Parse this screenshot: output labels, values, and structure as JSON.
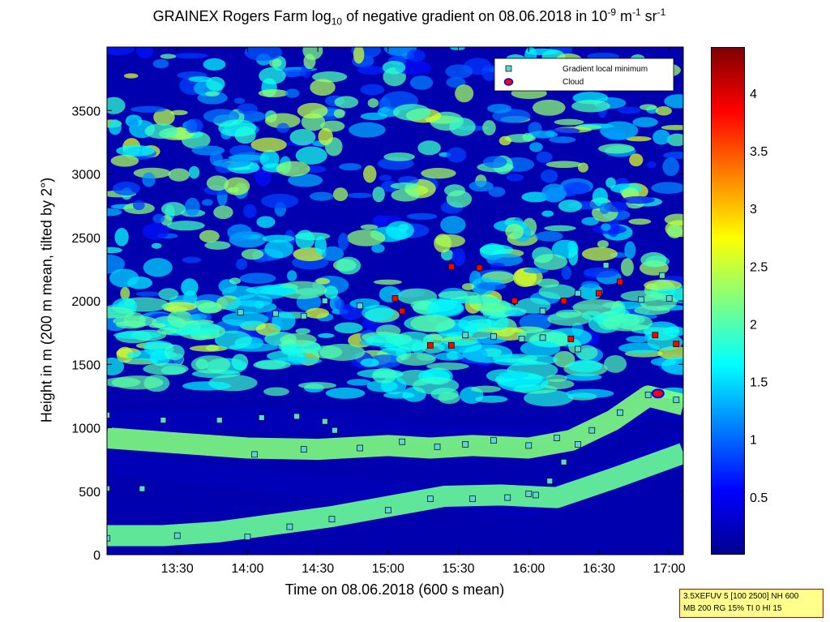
{
  "title": {
    "part1": "GRAINEX Rogers Farm log",
    "sub": "10",
    "part2": " of negative gradient on 08.06.2018 in 10",
    "sup1": "-9",
    "part3": " m",
    "sup2": "-1",
    "part4": " sr",
    "sup3": "-1"
  },
  "annotation": {
    "line1": "3.5XEFUV 5 [100 2500] NH 600",
    "line2": "MB 200 RG 15% TI 0 HI 15"
  },
  "colors": {
    "colormap": [
      "#00008f",
      "#0000ff",
      "#0080ff",
      "#00ffff",
      "#80ff80",
      "#ffff00",
      "#ff8000",
      "#ff0000",
      "#800000"
    ],
    "marker_fill_cool": "#5bd6d6",
    "marker_fill_warm": "#ff0000",
    "cloud": "#ff0000"
  },
  "chart_data": {
    "type": "heatmap",
    "xlabel": "Time on 08.06.2018 (600 s mean)",
    "ylabel": "Height in m (200 m mean, tilted by 2°)",
    "xlim": [
      13.0,
      17.1
    ],
    "ylim": [
      0,
      4000
    ],
    "xticks": [
      "13:30",
      "14:00",
      "14:30",
      "15:00",
      "15:30",
      "16:00",
      "16:30",
      "17:00"
    ],
    "xtick_values": [
      13.5,
      14.0,
      14.5,
      15.0,
      15.5,
      16.0,
      16.5,
      17.0
    ],
    "yticks": [
      0,
      500,
      1000,
      1500,
      2000,
      2500,
      3000,
      3500
    ],
    "colorbar": {
      "min": 0,
      "max": 4.4,
      "ticks": [
        0.5,
        1,
        1.5,
        2,
        2.5,
        3,
        3.5,
        4
      ]
    },
    "legend": {
      "placement": "top-right",
      "entries": [
        "Gradient local minimum",
        "Cloud"
      ]
    },
    "layers": [
      {
        "x": [
          13.0,
          13.5,
          14.0,
          14.5,
          15.0,
          15.3,
          15.6,
          16.0,
          16.3,
          16.6,
          16.85,
          17.1
        ],
        "y": [
          1050,
          1050,
          1070,
          1060,
          1000,
          930,
          940,
          930,
          960,
          1000,
          1180,
          1120
        ],
        "value": 0.2
      },
      {
        "x": [
          13.0,
          13.5,
          14.0,
          14.5,
          15.0,
          15.3,
          15.6,
          16.0,
          16.3,
          16.6,
          16.85,
          17.1
        ],
        "y": [
          920,
          880,
          840,
          830,
          860,
          840,
          860,
          840,
          900,
          1060,
          1250,
          1180
        ],
        "value": 2.2
      },
      {
        "x": [
          13.0,
          13.4,
          13.8,
          14.2,
          14.6,
          15.0,
          15.3,
          15.6,
          16.0,
          16.3,
          16.6,
          17.1
        ],
        "y": [
          720,
          670,
          620,
          570,
          530,
          490,
          450,
          420,
          380,
          520,
          650,
          900
        ],
        "value": 0.2
      },
      {
        "x": [
          13.0,
          13.4,
          13.8,
          14.2,
          14.6,
          15.0,
          15.4,
          15.8,
          16.2,
          16.6,
          17.1
        ],
        "y": [
          150,
          150,
          180,
          240,
          300,
          380,
          460,
          470,
          450,
          600,
          800
        ],
        "value": 2.1
      }
    ],
    "series": [
      {
        "name": "Gradient local minimum",
        "points": [
          [
            13.0,
            520
          ],
          [
            13.25,
            520
          ],
          [
            13.0,
            130
          ],
          [
            13.5,
            150
          ],
          [
            14.0,
            140
          ],
          [
            14.3,
            220
          ],
          [
            14.6,
            280
          ],
          [
            15.0,
            350
          ],
          [
            15.3,
            440
          ],
          [
            15.6,
            440
          ],
          [
            15.85,
            450
          ],
          [
            16.05,
            470
          ],
          [
            13.0,
            1100
          ],
          [
            13.4,
            1060
          ],
          [
            13.8,
            1060
          ],
          [
            14.1,
            1080
          ],
          [
            14.35,
            1090
          ],
          [
            14.55,
            1050
          ],
          [
            14.62,
            980
          ],
          [
            14.05,
            790
          ],
          [
            14.4,
            830
          ],
          [
            14.8,
            840
          ],
          [
            15.1,
            890
          ],
          [
            15.35,
            850
          ],
          [
            15.55,
            870
          ],
          [
            15.75,
            900
          ],
          [
            16.0,
            860
          ],
          [
            16.2,
            920
          ],
          [
            16.45,
            980
          ],
          [
            16.65,
            1120
          ],
          [
            16.85,
            1260
          ],
          [
            17.05,
            1220
          ],
          [
            16.0,
            480
          ],
          [
            16.15,
            580
          ],
          [
            16.25,
            730
          ],
          [
            16.35,
            870
          ],
          [
            13.95,
            1910
          ],
          [
            14.2,
            1900
          ],
          [
            14.4,
            1880
          ],
          [
            14.55,
            2000
          ],
          [
            14.8,
            1960
          ],
          [
            15.05,
            2020
          ],
          [
            15.1,
            1920
          ],
          [
            15.3,
            1650
          ],
          [
            15.45,
            1650
          ],
          [
            15.55,
            1730
          ],
          [
            15.75,
            1720
          ],
          [
            15.95,
            1700
          ],
          [
            16.1,
            1710
          ],
          [
            16.3,
            1700
          ],
          [
            16.35,
            1620
          ],
          [
            15.45,
            2270
          ],
          [
            15.65,
            2260
          ],
          [
            15.9,
            2000
          ],
          [
            16.1,
            1920
          ],
          [
            16.25,
            2000
          ],
          [
            16.35,
            2060
          ],
          [
            16.5,
            2060
          ],
          [
            16.55,
            2280
          ],
          [
            16.65,
            2150
          ],
          [
            16.8,
            2010
          ],
          [
            16.95,
            2200
          ],
          [
            17.0,
            2020
          ],
          [
            17.05,
            1660
          ],
          [
            16.9,
            1730
          ]
        ]
      },
      {
        "name": "Cloud",
        "points": [
          [
            16.92,
            1270
          ]
        ]
      }
    ]
  }
}
